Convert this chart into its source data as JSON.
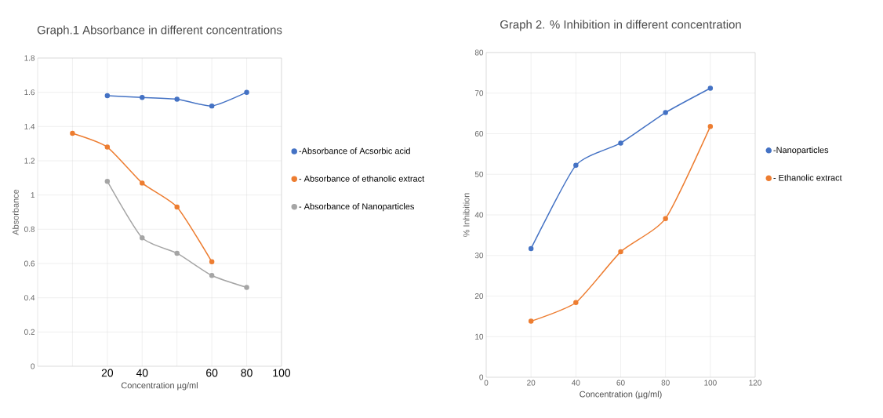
{
  "chart_data": [
    {
      "type": "line",
      "title": "Graph.1 Absorbance in different concentrations",
      "xlabel": "Concentration µg/ml",
      "ylabel": "Absorbance",
      "categories": [
        null,
        "20",
        "40",
        null,
        "60",
        "80",
        "100"
      ],
      "series": [
        {
          "name": "-Absorbance of Acsorbic acid",
          "color": "#4472c4",
          "values": [
            null,
            1.58,
            1.57,
            1.56,
            1.52,
            1.6,
            null
          ]
        },
        {
          "name": "- Absorbance of ethanolic extract",
          "color": "#ed7d31",
          "values": [
            1.36,
            1.28,
            1.07,
            0.93,
            0.61,
            null,
            null
          ]
        },
        {
          "name": "- Absorbance of Nanoparticles",
          "color": "#a5a5a5",
          "values": [
            null,
            1.08,
            0.75,
            0.66,
            0.53,
            0.46,
            null
          ]
        }
      ],
      "ylim": [
        0,
        1.8
      ],
      "yticks": [
        0,
        0.2,
        0.4,
        0.6,
        0.8,
        1,
        1.2,
        1.4,
        1.6,
        1.8
      ],
      "grid": true,
      "legend": "right",
      "marker": "circle"
    },
    {
      "type": "line",
      "title": "Graph 2. % Inhibition in different concentration",
      "xlabel": "Concentration (µg/ml)",
      "ylabel": "% Inhibition",
      "x": [
        20,
        40,
        60,
        80,
        100
      ],
      "series": [
        {
          "name": "-Nanoparticles",
          "color": "#4472c4",
          "values": [
            31.7,
            52.2,
            57.7,
            65.2,
            71.2
          ]
        },
        {
          "name": "- Ethanolic extract",
          "color": "#ed7d31",
          "values": [
            13.8,
            18.4,
            30.9,
            39.1,
            61.8
          ]
        }
      ],
      "xlim": [
        0,
        120
      ],
      "xticks": [
        0,
        20,
        40,
        60,
        80,
        100,
        120
      ],
      "ylim": [
        0,
        80
      ],
      "yticks": [
        0,
        10,
        20,
        30,
        40,
        50,
        60,
        70,
        80
      ],
      "grid": true,
      "legend": "right",
      "marker": "circle"
    }
  ]
}
